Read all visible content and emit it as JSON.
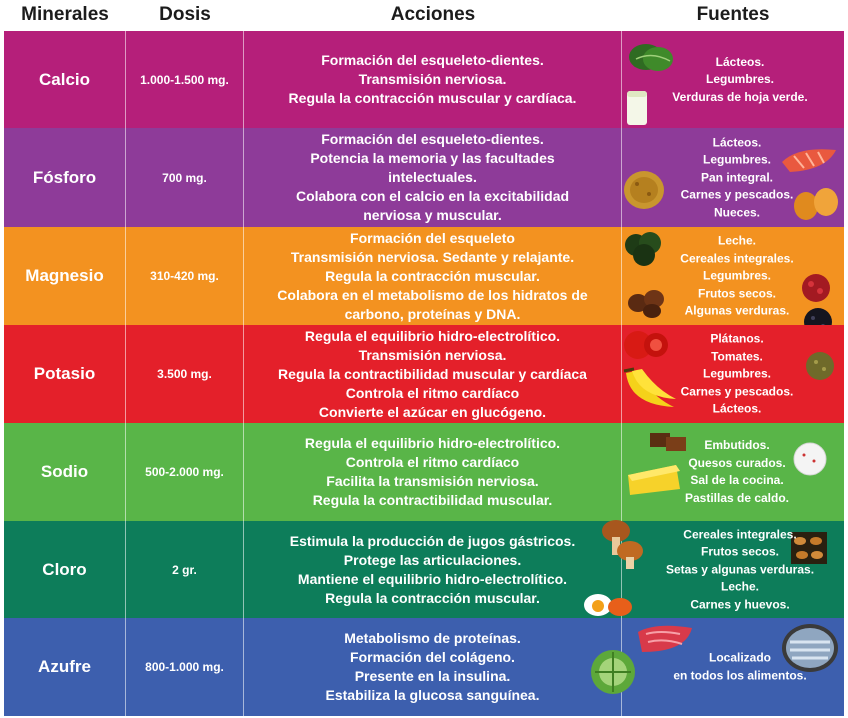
{
  "headers": {
    "minerales": "Minerales",
    "dosis": "Dosis",
    "acciones": "Acciones",
    "fuentes": "Fuentes"
  },
  "rows": [
    {
      "mineral": "Calcio",
      "dosis": "1.000-1.500 mg.",
      "color": "#b51f7a",
      "acciones": [
        "Formación del esqueleto-dientes.",
        "Transmisión nerviosa.",
        "Regula la contracción muscular y cardíaca."
      ],
      "fuentes": [
        "Lácteos.",
        "Legumbres.",
        "Verduras de hoja verde."
      ],
      "icons": [
        "spinach-icon",
        "milk-glass-icon"
      ]
    },
    {
      "mineral": "Fósforo",
      "dosis": "700 mg.",
      "color": "#8e3b99",
      "acciones": [
        "Formación del esqueleto-dientes.",
        "Potencia la memoria y las facultades",
        "intelectuales.",
        "Colabora con el calcio en la excitabilidad",
        "nerviosa y muscular."
      ],
      "fuentes": [
        "Lácteos.",
        "Legumbres.",
        "Pan integral.",
        "Carnes y pescados.",
        "Nueces."
      ],
      "icons": [
        "salmon-icon",
        "bread-icon",
        "nuts-icon"
      ]
    },
    {
      "mineral": "Magnesio",
      "dosis": "310-420 mg.",
      "color": "#f39220",
      "acciones": [
        "Formación del esqueleto",
        "Transmisión nerviosa. Sedante y relajante.",
        "Regula la contracción muscular.",
        "Colabora en el metabolismo de los hidratos de",
        "carbono, proteínas y DNA."
      ],
      "fuentes": [
        "Leche.",
        "Cereales integrales.",
        "Legumbres.",
        "Frutos secos.",
        "Algunas verduras."
      ],
      "icons": [
        "seaweed-icon",
        "chestnuts-icon",
        "goji-icon",
        "black-beans-icon"
      ]
    },
    {
      "mineral": "Potasio",
      "dosis": "3.500 mg.",
      "color": "#e4202a",
      "acciones": [
        "Regula el equilibrio hidro-electrolítico.",
        "Transmisión nerviosa.",
        "Regula la contractibilidad muscular y cardíaca",
        "Controla el ritmo cardíaco",
        "Convierte el azúcar en glucógeno."
      ],
      "fuentes": [
        "Plátanos.",
        "Tomates.",
        "Legumbres.",
        "Carnes y pescados.",
        "Lácteos."
      ],
      "icons": [
        "tomato-icon",
        "banana-icon",
        "lentils-icon"
      ]
    },
    {
      "mineral": "Sodio",
      "dosis": "500-2.000 mg.",
      "color": "#59b548",
      "acciones": [
        "Regula el equilibrio hidro-electrolítico.",
        "Controla el ritmo cardíaco",
        "Facilita la transmisión nerviosa.",
        "Regula la contractibilidad muscular."
      ],
      "fuentes": [
        "Embutidos.",
        "Quesos curados.",
        "Sal de la cocina.",
        "Pastillas de caldo."
      ],
      "icons": [
        "chocolate-icon",
        "cheese-icon",
        "salt-icon"
      ]
    },
    {
      "mineral": "Cloro",
      "dosis": "2 gr.",
      "color": "#0d7d5a",
      "acciones": [
        "Estimula la producción de jugos gástricos.",
        "Protege las articulaciones.",
        "Mantiene el equilibrio hidro-electrolítico.",
        "Regula la contracción muscular."
      ],
      "fuentes": [
        "Cereales integrales.",
        "Frutos secos.",
        "Setas y algunas verduras.",
        "Leche.",
        "Carnes y huevos."
      ],
      "icons": [
        "mushroom-icon",
        "almonds-icon",
        "egg-icon"
      ]
    },
    {
      "mineral": "Azufre",
      "dosis": "800-1.000 mg.",
      "color": "#3d5fae",
      "acciones": [
        "Metabolismo de proteínas.",
        "Formación del colágeno.",
        "Presente en la insulina.",
        "Estabiliza la glucosa sanguínea."
      ],
      "fuentes": [
        "Localizado",
        "en todos los alimentos."
      ],
      "icons": [
        "meat-icon",
        "sardines-icon",
        "cabbage-icon"
      ]
    }
  ]
}
